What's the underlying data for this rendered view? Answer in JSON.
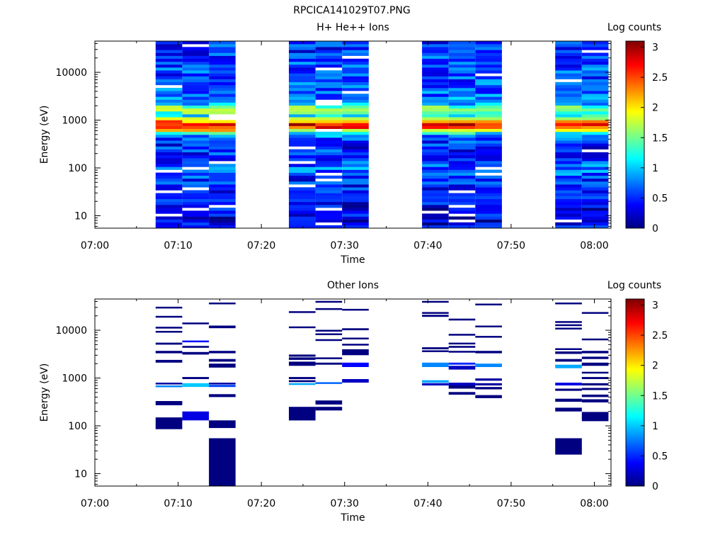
{
  "figure_title": "RPCICA141029T07.PNG",
  "chart_data": [
    {
      "type": "heatmap",
      "title": "H+ He++ Ions",
      "xlabel": "Time",
      "ylabel": "Energy (eV)",
      "x_ticks": [
        "07:00",
        "07:10",
        "07:20",
        "07:30",
        "07:40",
        "07:50",
        "08:00"
      ],
      "x_range_minutes": [
        0,
        62
      ],
      "y_scale": "log",
      "y_ticks": [
        "10",
        "100",
        "1000",
        "10000"
      ],
      "y_range": [
        5.5,
        45000
      ],
      "colorbar": {
        "label": "Log counts",
        "ticks": [
          "0",
          "0.5",
          "1",
          "1.5",
          "2",
          "2.5",
          "3"
        ],
        "range": [
          0,
          3.1
        ],
        "colormap": "jet"
      },
      "time_columns_minutes": [
        [
          7.3,
          10.5
        ],
        [
          10.5,
          13.7
        ],
        [
          13.7,
          16.9
        ],
        [
          23.3,
          26.5
        ],
        [
          26.5,
          29.7
        ],
        [
          29.7,
          32.9
        ],
        [
          39.3,
          42.5
        ],
        [
          42.5,
          45.7
        ],
        [
          45.7,
          48.9
        ],
        [
          55.3,
          58.5
        ],
        [
          58.5,
          61.7
        ]
      ],
      "spectrum_profile": {
        "energy_eV": [
          6,
          25,
          55,
          90,
          150,
          300,
          500,
          650,
          780,
          900,
          1200,
          1700,
          2200,
          3500,
          7000,
          12000,
          20000,
          40000
        ],
        "log_counts": [
          0.3,
          0.35,
          0.5,
          0.75,
          0.55,
          0.45,
          0.8,
          2.3,
          2.9,
          2.5,
          1.0,
          1.9,
          0.9,
          0.7,
          0.6,
          0.6,
          0.55,
          0.5
        ]
      }
    },
    {
      "type": "heatmap",
      "title": "Other Ions",
      "xlabel": "Time",
      "ylabel": "Energy (eV)",
      "x_ticks": [
        "07:00",
        "07:10",
        "07:20",
        "07:30",
        "07:40",
        "07:50",
        "08:00"
      ],
      "x_range_minutes": [
        0,
        62
      ],
      "y_scale": "log",
      "y_ticks": [
        "10",
        "100",
        "1000",
        "10000"
      ],
      "y_range": [
        5.5,
        45000
      ],
      "colorbar": {
        "label": "Log counts",
        "ticks": [
          "0",
          "0.5",
          "1",
          "1.5",
          "2",
          "2.5",
          "3"
        ],
        "range": [
          0,
          3.1
        ],
        "colormap": "jet"
      },
      "columns": [
        {
          "t": [
            7.3,
            10.5
          ],
          "bands": [
            [
              85,
              150,
              0
            ],
            [
              270,
              330,
              0
            ],
            [
              660,
              700,
              0.8
            ],
            [
              740,
              800,
              0.1
            ],
            [
              2100,
              2400,
              0
            ],
            [
              3300,
              3700,
              0
            ],
            [
              5000,
              5500,
              0
            ],
            [
              9000,
              9700,
              0
            ],
            [
              11000,
              11800,
              0
            ],
            [
              18500,
              20000,
              0
            ],
            [
              29000,
              31000,
              0
            ]
          ]
        },
        {
          "t": [
            10.5,
            13.7
          ],
          "bands": [
            [
              130,
              200,
              0.3
            ],
            [
              650,
              780,
              1.0
            ],
            [
              950,
              1050,
              0
            ],
            [
              3100,
              3500,
              0
            ],
            [
              4300,
              4700,
              0
            ],
            [
              5600,
              6100,
              0.4
            ],
            [
              13500,
              14500,
              0
            ]
          ]
        },
        {
          "t": [
            13.7,
            16.9
          ],
          "bands": [
            [
              5.5,
              55,
              0
            ],
            [
              90,
              130,
              0
            ],
            [
              400,
              460,
              0
            ],
            [
              650,
              720,
              0.6
            ],
            [
              740,
              800,
              0.1
            ],
            [
              1650,
              2000,
              0
            ],
            [
              2200,
              2500,
              0
            ],
            [
              3300,
              3700,
              0
            ],
            [
              11000,
              12500,
              0
            ],
            [
              35000,
              38000,
              0
            ]
          ]
        },
        {
          "t": [
            23.3,
            26.5
          ],
          "bands": [
            [
              130,
              250,
              0
            ],
            [
              720,
              780,
              0.9
            ],
            [
              820,
              900,
              0
            ],
            [
              950,
              1050,
              0
            ],
            [
              1800,
              2200,
              0
            ],
            [
              2400,
              2700,
              0
            ],
            [
              2800,
              3100,
              0
            ],
            [
              11000,
              12000,
              0
            ],
            [
              23000,
              25000,
              0
            ]
          ]
        },
        {
          "t": [
            26.5,
            29.7
          ],
          "bands": [
            [
              210,
              250,
              0
            ],
            [
              280,
              340,
              0
            ],
            [
              760,
              820,
              0.7
            ],
            [
              1900,
              2100,
              0
            ],
            [
              2500,
              2700,
              0
            ],
            [
              6000,
              6500,
              0
            ],
            [
              8000,
              8600,
              0
            ],
            [
              9500,
              10200,
              0
            ],
            [
              27000,
              29000,
              0
            ],
            [
              38000,
              41000,
              0
            ]
          ]
        },
        {
          "t": [
            29.7,
            32.9
          ],
          "bands": [
            [
              800,
              950,
              0.2
            ],
            [
              1700,
              2100,
              0.4
            ],
            [
              3000,
              4000,
              0
            ],
            [
              4800,
              5200,
              0
            ],
            [
              6500,
              7000,
              0
            ],
            [
              10000,
              11000,
              0
            ],
            [
              26000,
              28000,
              0
            ]
          ]
        },
        {
          "t": [
            39.3,
            42.5
          ],
          "bands": [
            [
              700,
              780,
              0.2
            ],
            [
              800,
              900,
              0.9
            ],
            [
              1700,
              2100,
              0.8
            ],
            [
              3500,
              3800,
              0
            ],
            [
              4000,
              4400,
              0
            ],
            [
              19000,
              21000,
              0
            ],
            [
              22000,
              24000,
              0
            ],
            [
              38000,
              41000,
              0
            ]
          ]
        },
        {
          "t": [
            42.5,
            45.7
          ],
          "bands": [
            [
              450,
              510,
              0
            ],
            [
              600,
              700,
              0
            ],
            [
              700,
              800,
              0.2
            ],
            [
              1500,
              1800,
              0.2
            ],
            [
              1900,
              2100,
              0.5
            ],
            [
              3400,
              3700,
              0
            ],
            [
              4300,
              4700,
              0
            ],
            [
              5100,
              5500,
              0
            ],
            [
              7800,
              8400,
              0
            ],
            [
              16000,
              17500,
              0
            ]
          ]
        },
        {
          "t": [
            45.7,
            48.9
          ],
          "bands": [
            [
              380,
              440,
              0
            ],
            [
              580,
              650,
              0
            ],
            [
              700,
              780,
              0.1
            ],
            [
              880,
              980,
              0.1
            ],
            [
              1700,
              2000,
              0.8
            ],
            [
              3300,
              3700,
              0
            ],
            [
              7000,
              7600,
              0
            ],
            [
              11500,
              12500,
              0
            ],
            [
              33000,
              36000,
              0
            ]
          ]
        },
        {
          "t": [
            55.3,
            58.5
          ],
          "bands": [
            [
              25,
              55,
              0
            ],
            [
              200,
              240,
              0
            ],
            [
              320,
              370,
              0
            ],
            [
              540,
              600,
              0
            ],
            [
              700,
              800,
              0.3
            ],
            [
              1600,
              1900,
              0.9
            ],
            [
              2200,
              2500,
              0
            ],
            [
              3200,
              3600,
              0
            ],
            [
              3900,
              4200,
              0
            ],
            [
              10500,
              11300,
              0
            ],
            [
              12500,
              13300,
              0
            ],
            [
              14500,
              15500,
              0
            ],
            [
              36000,
              38000,
              0
            ]
          ]
        },
        {
          "t": [
            58.5,
            61.7
          ],
          "bands": [
            [
              125,
              195,
              0
            ],
            [
              310,
              360,
              0
            ],
            [
              400,
              450,
              0
            ],
            [
              560,
              620,
              0
            ],
            [
              700,
              780,
              0
            ],
            [
              950,
              1050,
              0
            ],
            [
              1250,
              1350,
              0
            ],
            [
              1800,
              2100,
              0
            ],
            [
              2500,
              2800,
              0
            ],
            [
              3300,
              3700,
              0
            ],
            [
              6200,
              6700,
              0
            ],
            [
              22000,
              24000,
              0
            ]
          ]
        }
      ]
    }
  ]
}
